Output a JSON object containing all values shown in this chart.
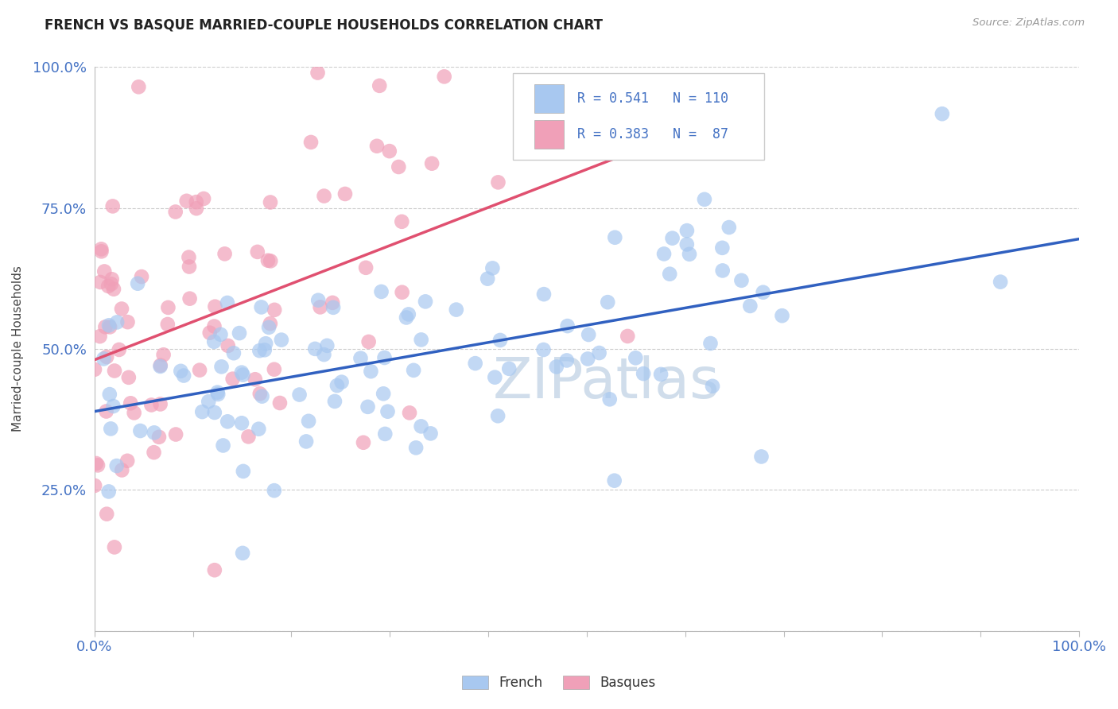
{
  "title": "FRENCH VS BASQUE MARRIED-COUPLE HOUSEHOLDS CORRELATION CHART",
  "source_text": "Source: ZipAtlas.com",
  "ylabel": "Married-couple Households",
  "xlim": [
    0.0,
    1.0
  ],
  "ylim": [
    0.0,
    1.0
  ],
  "ytick_labels": [
    "",
    "25.0%",
    "50.0%",
    "75.0%",
    "100.0%"
  ],
  "ytick_positions": [
    0.0,
    0.25,
    0.5,
    0.75,
    1.0
  ],
  "xtick_labels_show": [
    "0.0%",
    "100.0%"
  ],
  "french_R": 0.541,
  "french_N": 110,
  "basque_R": 0.383,
  "basque_N": 87,
  "french_color": "#a8c8f0",
  "basque_color": "#f0a0b8",
  "french_line_color": "#3060c0",
  "basque_line_color": "#e05070",
  "legend_label_french": "French",
  "legend_label_basque": "Basques",
  "title_fontsize": 12,
  "axis_label_fontsize": 11,
  "tick_label_color": "#4472c4",
  "watermark_text": "ZIPatlas",
  "watermark_color": "#c8d8e8",
  "background_color": "#ffffff",
  "grid_color": "#cccccc",
  "ref_line_color": "#aaaaaa"
}
